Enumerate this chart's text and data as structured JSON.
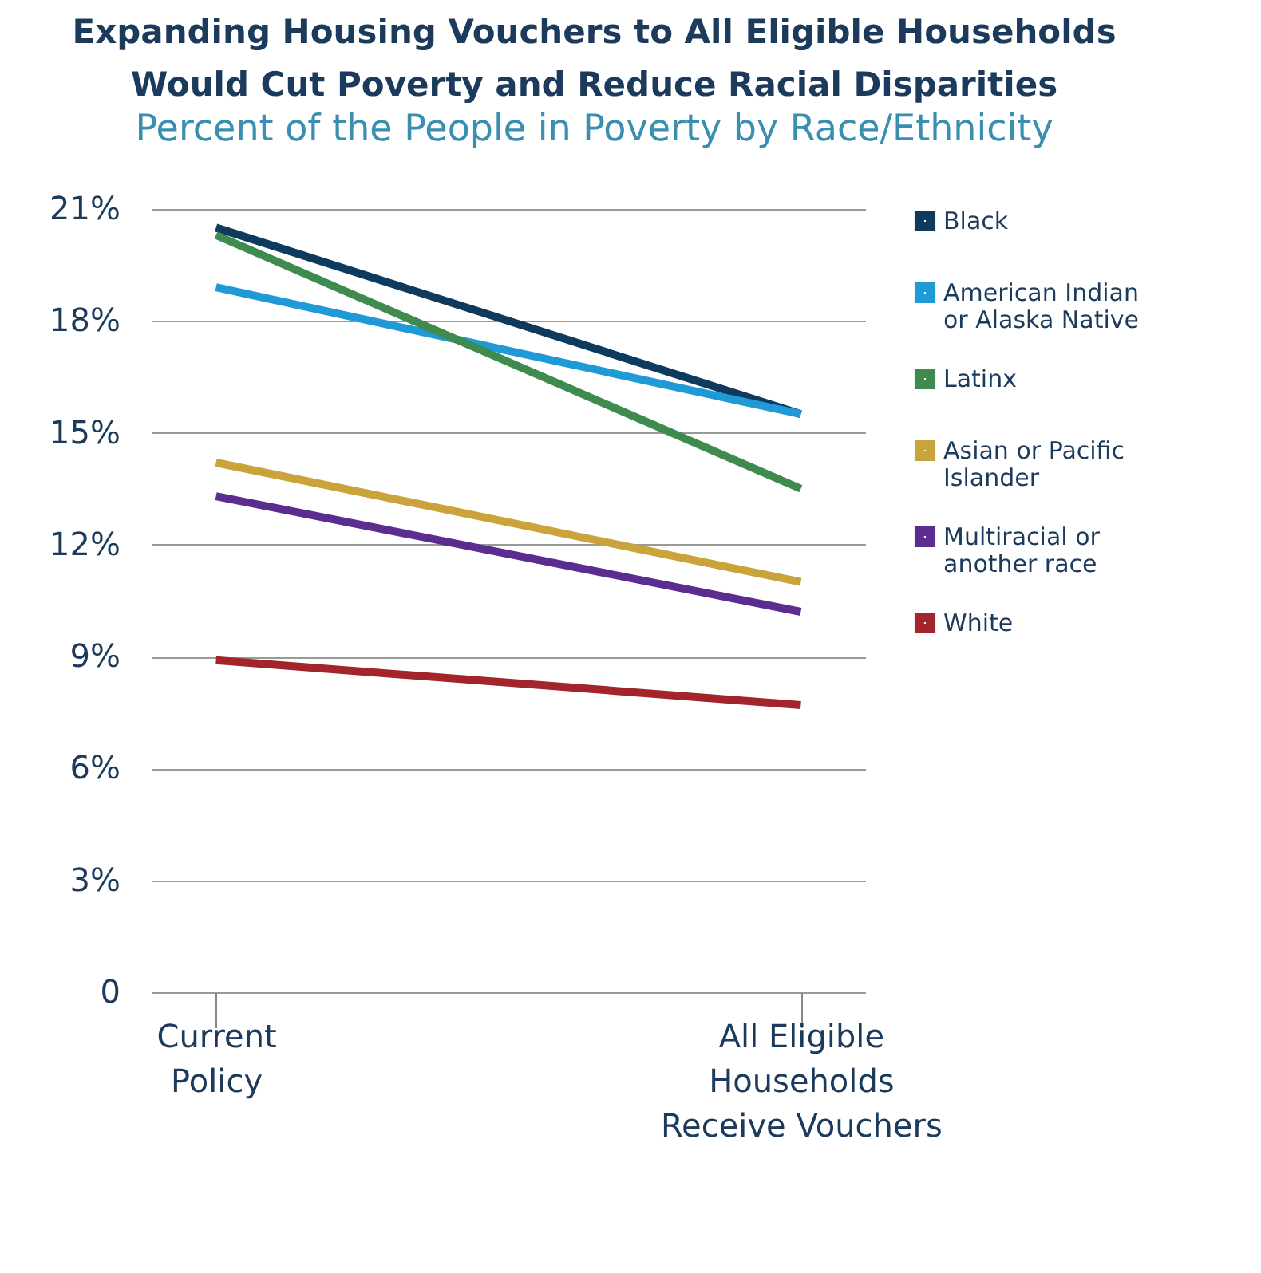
{
  "chart_data": {
    "type": "line",
    "title": "Expanding Housing Vouchers to All Eligible Households Would Cut Poverty and Reduce Racial Disparities",
    "subtitle": "Percent of the People in Poverty by Race/Ethnicity",
    "categories": [
      "Current Policy",
      "All Eligible Households Receive Vouchers"
    ],
    "series": [
      {
        "name": "Black",
        "color": "#0e3a5e",
        "values": [
          20.5,
          15.5
        ]
      },
      {
        "name": "American Indian or Alaska Native",
        "color": "#1f9ad6",
        "values": [
          18.9,
          15.5
        ]
      },
      {
        "name": "Latinx",
        "color": "#3f8a4e",
        "values": [
          20.3,
          13.5
        ]
      },
      {
        "name": "Asian or Pacific Islander",
        "color": "#c9a43a",
        "values": [
          14.2,
          11.0
        ]
      },
      {
        "name": "Multiracial or another race",
        "color": "#5c2d91",
        "values": [
          13.3,
          10.2
        ]
      },
      {
        "name": "White",
        "color": "#a3242a",
        "values": [
          8.9,
          7.7
        ]
      }
    ],
    "ylim": [
      0,
      21
    ],
    "yticks": [
      {
        "value": 0,
        "label": "0"
      },
      {
        "value": 3,
        "label": "3%"
      },
      {
        "value": 6,
        "label": "6%"
      },
      {
        "value": 9,
        "label": "9%"
      },
      {
        "value": 12,
        "label": "12%"
      },
      {
        "value": 15,
        "label": "15%"
      },
      {
        "value": 18,
        "label": "18%"
      },
      {
        "value": 21,
        "label": "21%"
      }
    ],
    "grid": "y",
    "legend": "right",
    "marker": "none",
    "line_style": "solid"
  }
}
